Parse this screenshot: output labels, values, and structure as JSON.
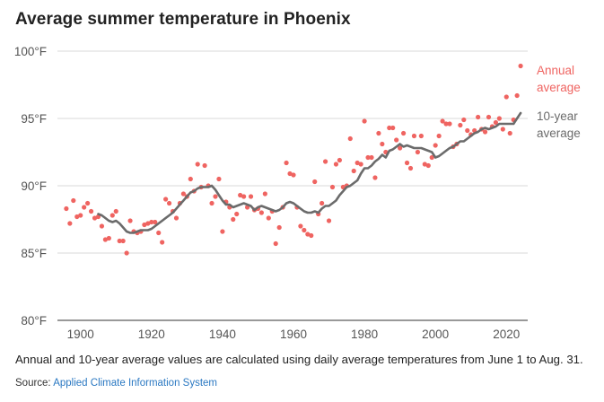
{
  "title": "Average summer temperature in Phoenix",
  "note": "Annual and 10-year average values are calculated using daily average temperatures from June 1 to Aug. 31.",
  "source": {
    "prefix": "Source:",
    "link_text": "Applied Climate Information System"
  },
  "colors": {
    "annual": "#ef6461",
    "rolling": "#6b6b6b",
    "grid": "#d9d9d9",
    "axis": "#333333",
    "link": "#2a78c2"
  },
  "chart_data": {
    "type": "scatter",
    "title": "Average summer temperature in Phoenix",
    "xlabel": "",
    "ylabel": "",
    "xlim": [
      1893.5,
      2026
    ],
    "ylim": [
      80,
      100
    ],
    "x_ticks": [
      1900,
      1920,
      1940,
      1960,
      1980,
      2000,
      2020
    ],
    "x_tick_labels": [
      "1900",
      "1920",
      "1940",
      "1960",
      "1980",
      "2000",
      "2020"
    ],
    "y_ticks": [
      80,
      85,
      90,
      95,
      100
    ],
    "y_tick_labels": [
      "80°F",
      "85°F",
      "90°F",
      "95°F",
      "100°F"
    ],
    "grid": true,
    "legend": "direct-labels-right",
    "series": [
      {
        "name": "Annual average",
        "label_lines": [
          "Annual",
          "average"
        ],
        "kind": "points",
        "x": [
          1896,
          1897,
          1898,
          1899,
          1900,
          1901,
          1902,
          1903,
          1904,
          1905,
          1906,
          1907,
          1908,
          1909,
          1910,
          1911,
          1912,
          1913,
          1914,
          1915,
          1916,
          1917,
          1918,
          1919,
          1920,
          1921,
          1922,
          1923,
          1924,
          1925,
          1926,
          1927,
          1928,
          1929,
          1930,
          1931,
          1932,
          1933,
          1934,
          1935,
          1936,
          1937,
          1938,
          1939,
          1940,
          1941,
          1942,
          1943,
          1944,
          1945,
          1946,
          1947,
          1948,
          1949,
          1950,
          1951,
          1952,
          1953,
          1954,
          1955,
          1956,
          1957,
          1958,
          1959,
          1960,
          1961,
          1962,
          1963,
          1964,
          1965,
          1966,
          1967,
          1968,
          1969,
          1970,
          1971,
          1972,
          1973,
          1974,
          1975,
          1976,
          1977,
          1978,
          1979,
          1980,
          1981,
          1982,
          1983,
          1984,
          1985,
          1986,
          1987,
          1988,
          1989,
          1990,
          1991,
          1992,
          1993,
          1994,
          1995,
          1996,
          1997,
          1998,
          1999,
          2000,
          2001,
          2002,
          2003,
          2004,
          2005,
          2006,
          2007,
          2008,
          2009,
          2010,
          2011,
          2012,
          2013,
          2014,
          2015,
          2016,
          2017,
          2018,
          2019,
          2020,
          2021,
          2022,
          2023,
          2024
        ],
        "values": [
          88.3,
          87.2,
          88.9,
          87.7,
          87.8,
          88.4,
          88.7,
          88.1,
          87.6,
          87.7,
          87.0,
          86.0,
          86.1,
          87.8,
          88.1,
          85.9,
          85.9,
          85.0,
          87.4,
          86.6,
          86.5,
          86.6,
          87.1,
          87.2,
          87.3,
          87.3,
          86.5,
          85.8,
          89.0,
          88.7,
          88.1,
          87.6,
          88.7,
          89.4,
          89.2,
          90.5,
          89.6,
          91.6,
          89.9,
          91.5,
          90.0,
          88.7,
          89.2,
          90.5,
          86.6,
          88.8,
          88.4,
          87.5,
          87.9,
          89.3,
          89.2,
          88.4,
          89.2,
          88.2,
          88.3,
          88.0,
          89.4,
          87.6,
          88.1,
          85.7,
          86.9,
          88.4,
          91.7,
          90.9,
          90.8,
          88.4,
          87.0,
          86.7,
          86.4,
          86.3,
          90.3,
          87.9,
          88.7,
          91.8,
          87.4,
          89.9,
          91.6,
          91.9,
          89.9,
          90.0,
          93.5,
          91.1,
          91.7,
          91.6,
          94.8,
          92.1,
          92.1,
          90.6,
          93.9,
          93.1,
          92.5,
          94.3,
          94.3,
          93.4,
          92.8,
          93.9,
          91.7,
          91.3,
          93.7,
          92.5,
          93.7,
          91.6,
          91.5,
          92.1,
          93.0,
          93.7,
          94.8,
          94.6,
          94.6,
          92.9,
          93.1,
          94.5,
          94.9,
          94.1,
          93.8,
          94.1,
          95.1,
          94.2,
          94.0,
          95.1,
          94.4,
          94.7,
          95.0,
          94.2,
          96.6,
          93.9,
          94.9,
          96.7,
          98.9
        ]
      },
      {
        "name": "10-year average",
        "label_lines": [
          "10-year",
          "average"
        ],
        "kind": "line",
        "x": [
          1905,
          1906,
          1907,
          1908,
          1909,
          1910,
          1911,
          1912,
          1913,
          1914,
          1915,
          1916,
          1917,
          1918,
          1919,
          1920,
          1921,
          1922,
          1923,
          1924,
          1925,
          1926,
          1927,
          1928,
          1929,
          1930,
          1931,
          1932,
          1933,
          1934,
          1935,
          1936,
          1937,
          1938,
          1939,
          1940,
          1941,
          1942,
          1943,
          1944,
          1945,
          1946,
          1947,
          1948,
          1949,
          1950,
          1951,
          1952,
          1953,
          1954,
          1955,
          1956,
          1957,
          1958,
          1959,
          1960,
          1961,
          1962,
          1963,
          1964,
          1965,
          1966,
          1967,
          1968,
          1969,
          1970,
          1971,
          1972,
          1973,
          1974,
          1975,
          1976,
          1977,
          1978,
          1979,
          1980,
          1981,
          1982,
          1983,
          1984,
          1985,
          1986,
          1987,
          1988,
          1989,
          1990,
          1991,
          1992,
          1993,
          1994,
          1995,
          1996,
          1997,
          1998,
          1999,
          2000,
          2001,
          2002,
          2003,
          2004,
          2005,
          2006,
          2007,
          2008,
          2009,
          2010,
          2011,
          2012,
          2013,
          2014,
          2015,
          2016,
          2017,
          2018,
          2019,
          2020,
          2021,
          2022,
          2023,
          2024
        ],
        "values": [
          87.9,
          87.8,
          87.6,
          87.4,
          87.3,
          87.4,
          87.2,
          86.9,
          86.6,
          86.5,
          86.5,
          86.6,
          86.7,
          86.7,
          86.7,
          86.8,
          87.0,
          87.2,
          87.4,
          87.6,
          87.8,
          88.0,
          88.3,
          88.6,
          88.9,
          89.2,
          89.5,
          89.6,
          89.8,
          89.9,
          89.9,
          89.9,
          90.0,
          89.7,
          89.3,
          88.9,
          88.6,
          88.6,
          88.4,
          88.5,
          88.6,
          88.7,
          88.6,
          88.5,
          88.2,
          88.4,
          88.5,
          88.4,
          88.3,
          88.2,
          88.1,
          88.2,
          88.4,
          88.7,
          88.8,
          88.7,
          88.5,
          88.3,
          88.1,
          88.0,
          88.0,
          88.1,
          88.0,
          88.3,
          88.5,
          88.5,
          88.7,
          88.9,
          89.3,
          89.6,
          89.9,
          90.0,
          90.2,
          90.4,
          90.9,
          91.3,
          91.3,
          91.5,
          91.8,
          92.0,
          92.3,
          92.1,
          92.6,
          92.7,
          92.9,
          93.1,
          92.9,
          93.0,
          92.9,
          92.8,
          92.8,
          92.8,
          92.7,
          92.6,
          92.5,
          92.1,
          92.2,
          92.4,
          92.6,
          92.8,
          92.9,
          93.1,
          93.3,
          93.3,
          93.5,
          93.7,
          93.9,
          94.0,
          94.2,
          94.3,
          94.2,
          94.3,
          94.4,
          94.6,
          94.6,
          94.6,
          94.6,
          94.6,
          95.0,
          95.4
        ]
      }
    ]
  }
}
